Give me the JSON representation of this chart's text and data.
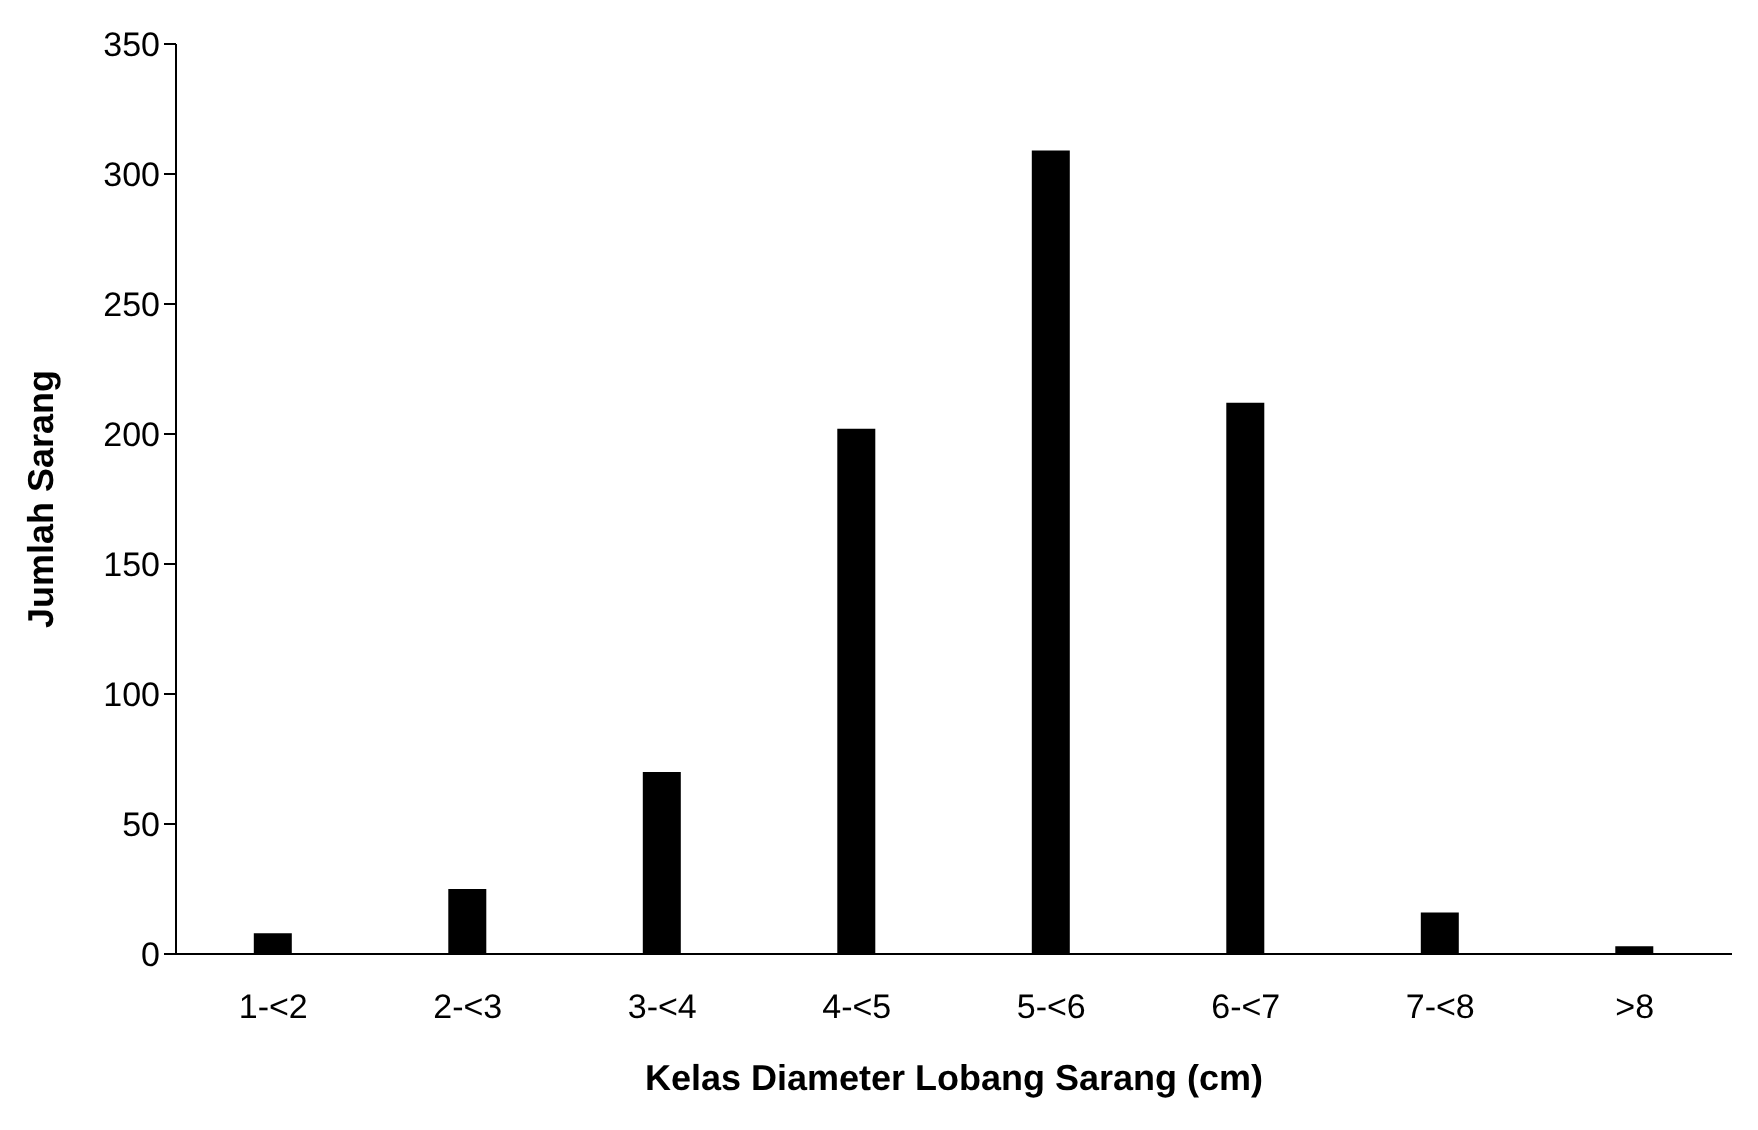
{
  "chart_data": {
    "type": "bar",
    "xlabel": "Kelas Diameter Lobang Sarang (cm)",
    "ylabel": "Jumlah Sarang",
    "categories": [
      "1-<2",
      "2-<3",
      "3-<4",
      "4-<5",
      "5-<6",
      "6-<7",
      "7-<8",
      ">8"
    ],
    "values": [
      8,
      25,
      70,
      202,
      309,
      212,
      16,
      3
    ],
    "color": "#000000",
    "ylim": [
      0,
      350
    ],
    "yticks": [
      0,
      50,
      100,
      150,
      200,
      250,
      300,
      350
    ],
    "grid": false,
    "legend": false
  }
}
